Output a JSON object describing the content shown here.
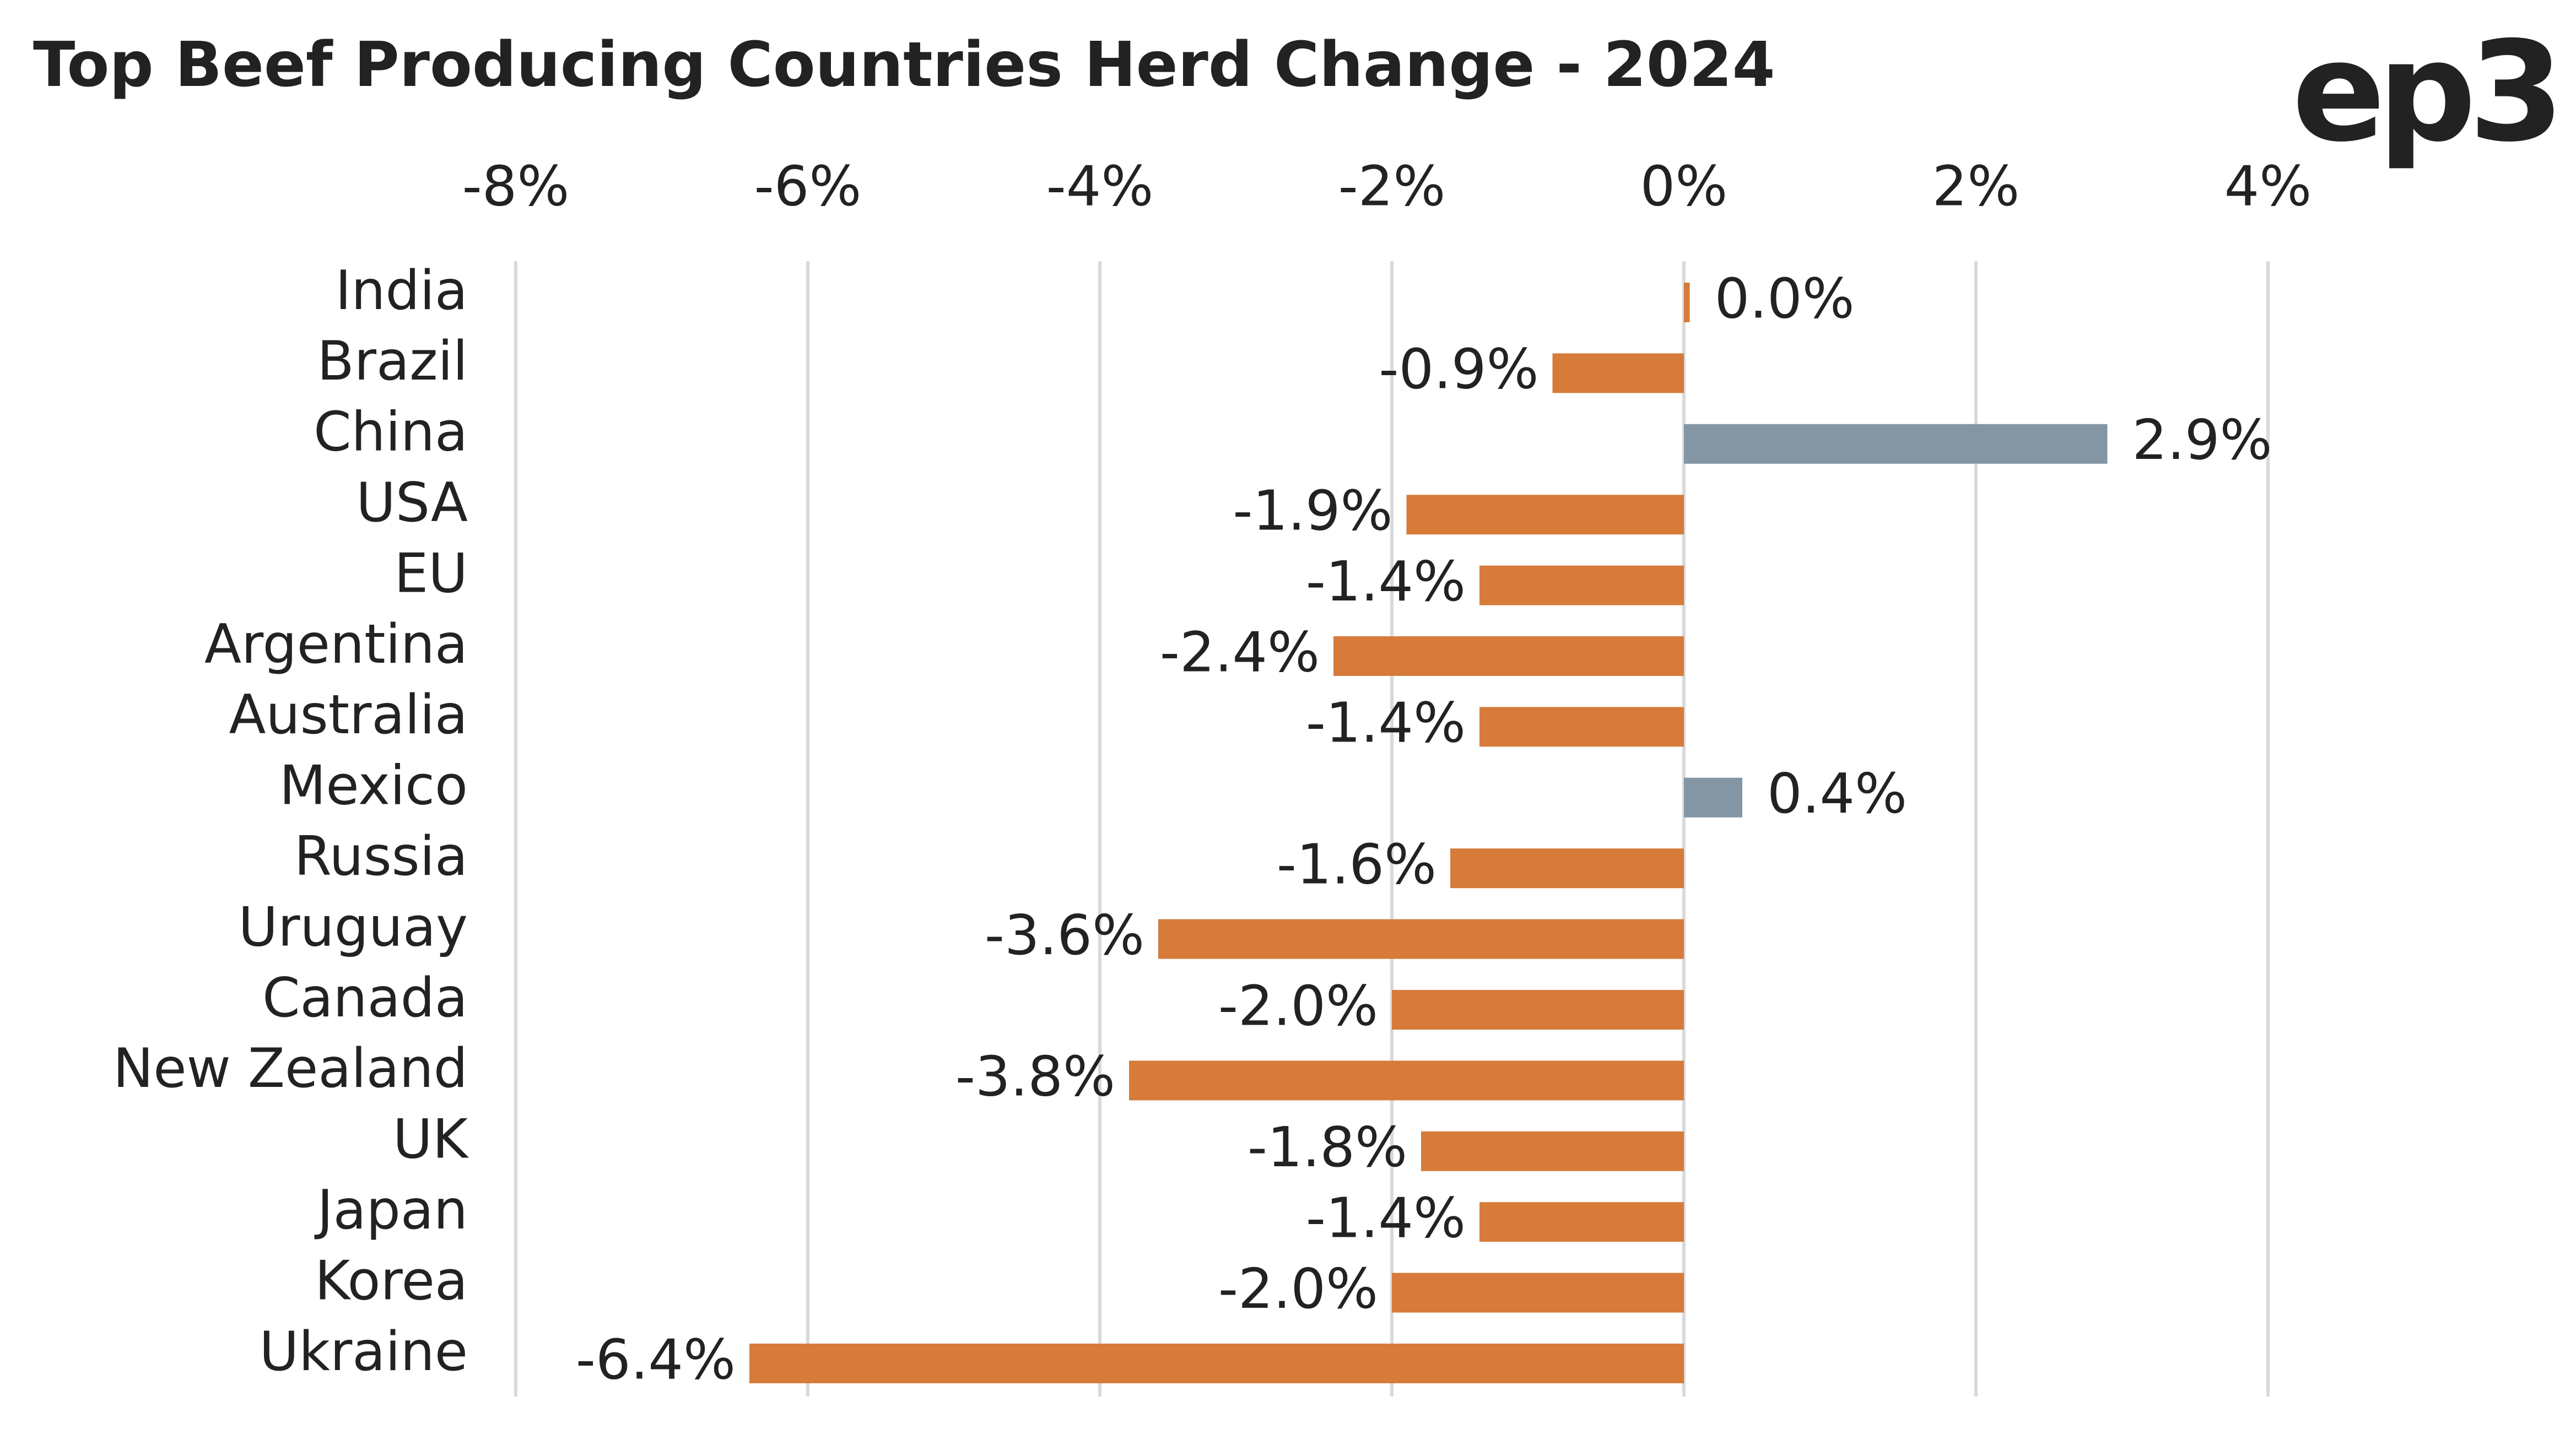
{
  "brand": "ep3",
  "chart_data": {
    "type": "hbar",
    "title": "Top Beef Producing Countries Herd Change - 2024",
    "categories": [
      "India",
      "Brazil",
      "China",
      "USA",
      "EU",
      "Argentina",
      "Australia",
      "Mexico",
      "Russia",
      "Uruguay",
      "Canada",
      "New Zealand",
      "UK",
      "Japan",
      "Korea",
      "Ukraine"
    ],
    "values": [
      0.04,
      -0.9,
      2.9,
      -1.9,
      -1.4,
      -2.4,
      -1.4,
      0.4,
      -1.6,
      -3.6,
      -2.0,
      -3.8,
      -1.8,
      -1.4,
      -2.0,
      -6.4
    ],
    "value_labels": [
      "0.0%",
      "-0.9%",
      "2.9%",
      "-1.9%",
      "-1.4%",
      "-2.4%",
      "-1.4%",
      "0.4%",
      "-1.6%",
      "-3.6%",
      "-2.0%",
      "-3.8%",
      "-1.8%",
      "-1.4%",
      "-2.0%",
      "-6.4%"
    ],
    "colors": [
      "#d67b3a",
      "#d67b3a",
      "#8496a3",
      "#d67b3a",
      "#d67b3a",
      "#d67b3a",
      "#d67b3a",
      "#8496a3",
      "#d67b3a",
      "#d67b3a",
      "#d67b3a",
      "#d67b3a",
      "#d67b3a",
      "#d67b3a",
      "#d67b3a",
      "#d67b3a"
    ],
    "xlim": [
      -8,
      4
    ],
    "xticks": [
      {
        "value": -8,
        "label": "-8%"
      },
      {
        "value": -6,
        "label": "-6%"
      },
      {
        "value": -4,
        "label": "-4%"
      },
      {
        "value": -2,
        "label": "-2%"
      },
      {
        "value": 0,
        "label": "0%"
      },
      {
        "value": 2,
        "label": "2%"
      },
      {
        "value": 4,
        "label": "4%"
      }
    ],
    "grid": true
  }
}
